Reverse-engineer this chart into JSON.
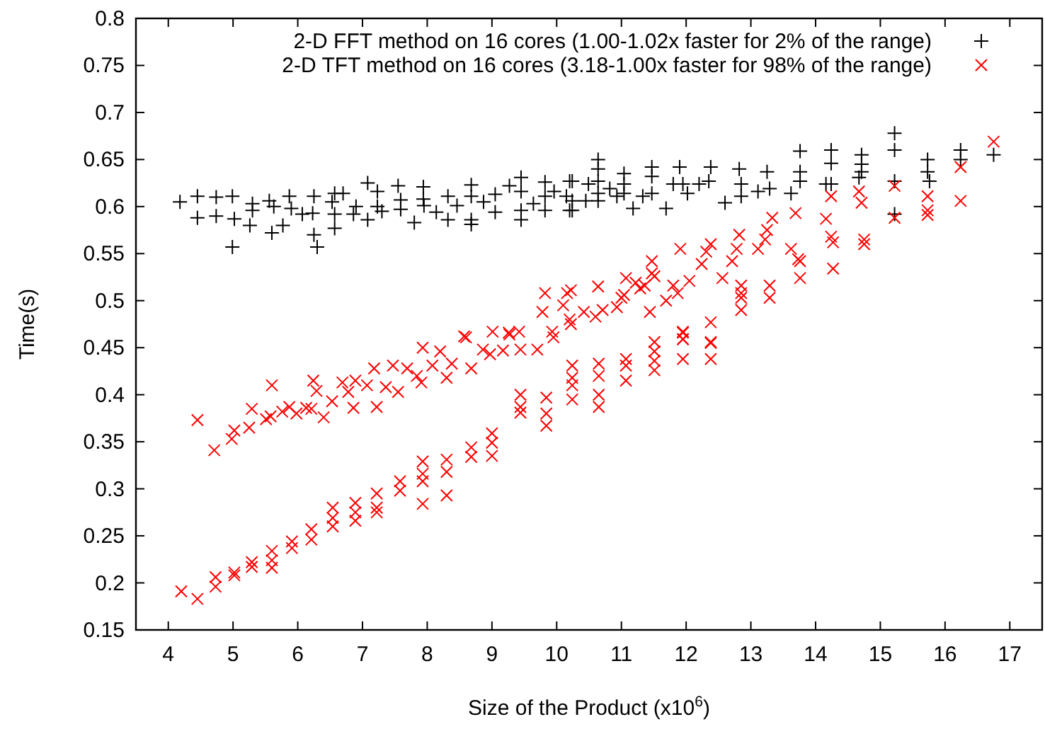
{
  "chart_data": {
    "type": "scatter",
    "xlabel": "Size of the Product (x10$^{6}$)",
    "ylabel": "Time(s)",
    "xlim": [
      3.5,
      17.5
    ],
    "ylim": [
      0.15,
      0.8
    ],
    "xticks": [
      4,
      5,
      6,
      7,
      8,
      9,
      10,
      11,
      12,
      13,
      14,
      15,
      16,
      17
    ],
    "yticks": [
      0.15,
      0.2,
      0.25,
      0.3,
      0.35,
      0.4,
      0.45,
      0.5,
      0.55,
      0.6,
      0.65,
      0.7,
      0.75,
      0.8
    ],
    "grid": false,
    "legend": "top right",
    "series": [
      {
        "name": "2-D FFT method on 16 cores (1.00-1.02x faster for 2% of the range)",
        "color": "#000000",
        "marker": "plus",
        "x": [
          4.18,
          4.45,
          4.45,
          4.74,
          4.74,
          4.99,
          4.99,
          5.02,
          5.3,
          5.3,
          5.26,
          5.56,
          5.6,
          5.77,
          5.63,
          5.87,
          5.9,
          6.07,
          6.23,
          6.25,
          6.25,
          6.3,
          6.53,
          6.57,
          6.57,
          6.57,
          6.7,
          6.86,
          6.9,
          7.08,
          7.08,
          7.23,
          7.23,
          7.3,
          7.55,
          7.59,
          7.59,
          7.8,
          7.94,
          7.94,
          7.95,
          8.14,
          8.32,
          8.32,
          8.46,
          8.68,
          8.68,
          8.68,
          8.68,
          8.87,
          9.05,
          9.05,
          9.27,
          9.45,
          9.45,
          9.45,
          9.45,
          9.64,
          9.82,
          9.82,
          9.82,
          9.96,
          10.2,
          10.2,
          10.15,
          10.24,
          10.24,
          10.24,
          10.49,
          10.45,
          10.64,
          10.64,
          10.64,
          10.64,
          10.64,
          10.82,
          10.93,
          11.04,
          11.04,
          11.04,
          11.18,
          11.33,
          11.47,
          11.47,
          11.47,
          11.69,
          11.8,
          11.9,
          11.95,
          12.02,
          12.2,
          12.35,
          12.38,
          12.6,
          12.82,
          12.85,
          12.85,
          13.11,
          13.25,
          13.29,
          13.62,
          13.76,
          13.76,
          13.76,
          14.16,
          14.24,
          14.24,
          14.24,
          14.67,
          14.71,
          14.71,
          14.71,
          15.22,
          15.22,
          15.22,
          15.22,
          15.73,
          15.73,
          15.76,
          16.24,
          16.24,
          16.75
        ],
        "values": [
          0.605,
          0.611,
          0.588,
          0.61,
          0.59,
          0.611,
          0.557,
          0.587,
          0.603,
          0.596,
          0.58,
          0.606,
          0.572,
          0.58,
          0.6,
          0.611,
          0.598,
          0.592,
          0.593,
          0.611,
          0.57,
          0.557,
          0.605,
          0.592,
          0.577,
          0.614,
          0.614,
          0.592,
          0.6,
          0.625,
          0.586,
          0.6,
          0.616,
          0.595,
          0.622,
          0.607,
          0.597,
          0.583,
          0.621,
          0.608,
          0.601,
          0.594,
          0.611,
          0.586,
          0.601,
          0.623,
          0.611,
          0.586,
          0.581,
          0.605,
          0.613,
          0.594,
          0.622,
          0.631,
          0.616,
          0.596,
          0.586,
          0.603,
          0.626,
          0.611,
          0.596,
          0.616,
          0.627,
          0.596,
          0.611,
          0.627,
          0.606,
          0.596,
          0.624,
          0.606,
          0.65,
          0.64,
          0.627,
          0.614,
          0.606,
          0.619,
          0.611,
          0.635,
          0.624,
          0.614,
          0.598,
          0.611,
          0.642,
          0.632,
          0.614,
          0.598,
          0.624,
          0.642,
          0.624,
          0.614,
          0.624,
          0.627,
          0.642,
          0.604,
          0.64,
          0.624,
          0.611,
          0.616,
          0.637,
          0.619,
          0.614,
          0.659,
          0.637,
          0.627,
          0.624,
          0.66,
          0.646,
          0.624,
          0.631,
          0.655,
          0.645,
          0.637,
          0.678,
          0.66,
          0.627,
          0.592,
          0.65,
          0.637,
          0.627,
          0.66,
          0.65,
          0.655
        ]
      },
      {
        "name": "2-D TFT method on 16 cores (3.18-1.00x faster for 98% of the range)",
        "color": "#ff0000",
        "marker": "cross",
        "x": [
          4.2,
          4.45,
          4.73,
          4.73,
          5.02,
          5.02,
          5.29,
          5.29,
          5.6,
          5.6,
          5.6,
          5.91,
          5.91,
          6.21,
          6.21,
          6.54,
          6.54,
          6.54,
          6.89,
          6.89,
          6.89,
          7.22,
          7.22,
          7.22,
          7.58,
          7.58,
          7.93,
          7.93,
          7.93,
          7.93,
          8.3,
          8.3,
          8.3,
          8.68,
          8.68,
          9.0,
          9.0,
          9.0,
          9.44,
          9.44,
          9.44,
          9.84,
          9.84,
          9.84,
          10.24,
          10.24,
          10.24,
          10.24,
          10.65,
          10.65,
          10.65,
          10.65,
          11.07,
          11.07,
          11.07,
          11.51,
          11.51,
          11.51,
          11.51,
          11.95,
          11.95,
          11.95,
          11.95,
          11.95,
          12.38,
          12.38,
          12.38,
          12.38,
          12.85,
          12.85,
          12.85,
          12.85,
          13.29,
          13.29,
          4.45,
          4.71,
          4.98,
          5.02,
          5.25,
          5.29,
          5.51,
          5.6,
          5.58,
          5.76,
          5.87,
          5.98,
          6.13,
          6.21,
          6.24,
          6.29,
          6.4,
          6.53,
          6.69,
          6.78,
          6.86,
          6.89,
          7.07,
          7.18,
          7.22,
          7.36,
          7.47,
          7.55,
          7.69,
          7.84,
          7.91,
          7.93,
          8.08,
          8.2,
          8.3,
          8.38,
          8.57,
          8.6,
          8.68,
          8.86,
          8.97,
          9.01,
          9.17,
          9.26,
          9.27,
          9.42,
          9.44,
          9.7,
          9.78,
          9.82,
          9.93,
          9.95,
          10.1,
          10.22,
          10.22,
          10.2,
          10.42,
          10.6,
          10.71,
          10.93,
          11.0,
          11.44,
          11.29,
          10.16,
          10.64,
          11.04,
          11.07,
          11.22,
          11.36,
          11.51,
          11.69,
          11.8,
          11.87,
          12.05,
          11.47,
          11.47,
          11.91,
          12.24,
          12.31,
          12.38,
          12.56,
          12.71,
          12.78,
          12.82,
          13.11,
          13.22,
          13.25,
          13.33,
          13.62,
          13.69,
          13.73,
          13.76,
          13.76,
          14.16,
          14.24,
          14.24,
          14.27,
          14.27,
          14.67,
          14.71,
          14.75,
          14.75,
          15.22,
          15.22,
          15.73,
          15.73,
          15.73,
          16.24,
          16.24,
          16.75
        ],
        "values": [
          0.191,
          0.183,
          0.206,
          0.196,
          0.211,
          0.208,
          0.222,
          0.217,
          0.234,
          0.224,
          0.216,
          0.244,
          0.237,
          0.257,
          0.246,
          0.28,
          0.269,
          0.26,
          0.285,
          0.275,
          0.266,
          0.295,
          0.28,
          0.275,
          0.308,
          0.298,
          0.329,
          0.316,
          0.308,
          0.284,
          0.331,
          0.318,
          0.293,
          0.344,
          0.334,
          0.359,
          0.349,
          0.335,
          0.4,
          0.387,
          0.381,
          0.397,
          0.38,
          0.367,
          0.431,
          0.418,
          0.41,
          0.395,
          0.433,
          0.42,
          0.4,
          0.387,
          0.438,
          0.431,
          0.415,
          0.456,
          0.446,
          0.436,
          0.426,
          0.467,
          0.459,
          0.466,
          0.459,
          0.438,
          0.477,
          0.455,
          0.456,
          0.438,
          0.516,
          0.508,
          0.503,
          0.49,
          0.516,
          0.503,
          0.373,
          0.341,
          0.353,
          0.362,
          0.365,
          0.385,
          0.374,
          0.41,
          0.377,
          0.382,
          0.387,
          0.38,
          0.386,
          0.385,
          0.415,
          0.404,
          0.376,
          0.393,
          0.413,
          0.403,
          0.386,
          0.415,
          0.41,
          0.428,
          0.387,
          0.408,
          0.431,
          0.403,
          0.428,
          0.42,
          0.413,
          0.45,
          0.431,
          0.446,
          0.418,
          0.433,
          0.462,
          0.461,
          0.428,
          0.448,
          0.443,
          0.467,
          0.447,
          0.466,
          0.464,
          0.467,
          0.448,
          0.448,
          0.488,
          0.508,
          0.467,
          0.461,
          0.495,
          0.511,
          0.475,
          0.48,
          0.488,
          0.483,
          0.49,
          0.493,
          0.503,
          0.488,
          0.513,
          0.508,
          0.515,
          0.506,
          0.524,
          0.519,
          0.516,
          0.526,
          0.5,
          0.516,
          0.508,
          0.521,
          0.542,
          0.529,
          0.555,
          0.539,
          0.552,
          0.56,
          0.524,
          0.542,
          0.555,
          0.57,
          0.555,
          0.565,
          0.575,
          0.588,
          0.555,
          0.593,
          0.544,
          0.542,
          0.524,
          0.587,
          0.611,
          0.568,
          0.562,
          0.534,
          0.616,
          0.604,
          0.565,
          0.56,
          0.622,
          0.588,
          0.611,
          0.596,
          0.591,
          0.642,
          0.606,
          0.669
        ]
      }
    ]
  }
}
